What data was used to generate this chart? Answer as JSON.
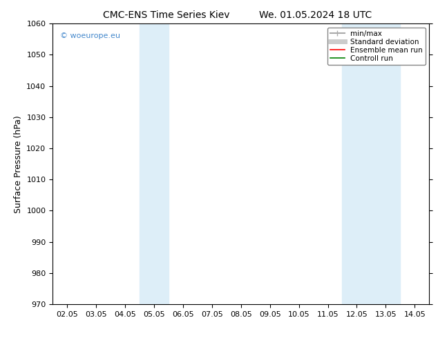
{
  "title_left": "CMC-ENS Time Series Kiev",
  "title_right": "We. 01.05.2024 18 UTC",
  "ylabel": "Surface Pressure (hPa)",
  "ylim": [
    970,
    1060
  ],
  "yticks": [
    970,
    980,
    990,
    1000,
    1010,
    1020,
    1030,
    1040,
    1050,
    1060
  ],
  "xtick_labels": [
    "02.05",
    "03.05",
    "04.05",
    "05.05",
    "06.05",
    "07.05",
    "08.05",
    "09.05",
    "10.05",
    "11.05",
    "12.05",
    "13.05",
    "14.05"
  ],
  "xtick_positions": [
    0,
    1,
    2,
    3,
    4,
    5,
    6,
    7,
    8,
    9,
    10,
    11,
    12
  ],
  "xlim": [
    -0.5,
    12.5
  ],
  "shaded_regions": [
    {
      "x_start": 2.5,
      "x_end": 3.5,
      "color": "#ddeef8"
    },
    {
      "x_start": 9.5,
      "x_end": 10.5,
      "color": "#ddeef8"
    },
    {
      "x_start": 10.5,
      "x_end": 11.5,
      "color": "#ddeef8"
    }
  ],
  "watermark_text": "© woeurope.eu",
  "watermark_color": "#4488cc",
  "legend_entries": [
    {
      "label": "min/max",
      "color": "#aaaaaa",
      "linestyle": "-",
      "linewidth": 1.5
    },
    {
      "label": "Standard deviation",
      "color": "#cccccc",
      "linestyle": "-",
      "linewidth": 5
    },
    {
      "label": "Ensemble mean run",
      "color": "#ff0000",
      "linestyle": "-",
      "linewidth": 1.2
    },
    {
      "label": "Controll run",
      "color": "#008000",
      "linestyle": "-",
      "linewidth": 1.2
    }
  ],
  "background_color": "#ffffff",
  "title_fontsize": 10,
  "tick_label_fontsize": 8,
  "ylabel_fontsize": 9,
  "legend_fontsize": 7.5
}
